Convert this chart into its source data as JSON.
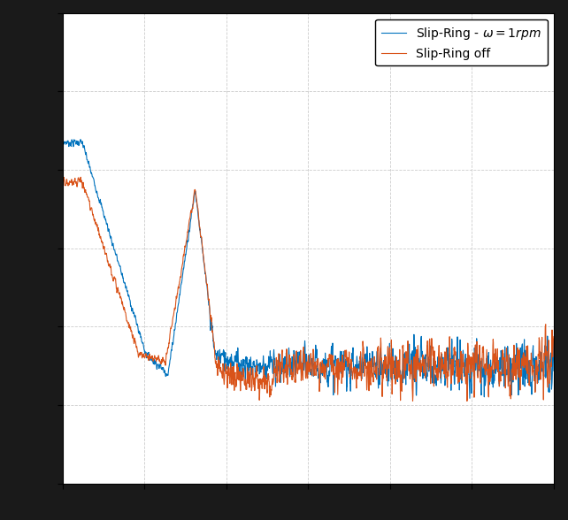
{
  "line1_color": "#0072BD",
  "line2_color": "#D95319",
  "line1_label": "Slip-Ring - $\\omega = 1rpm$",
  "line2_label": "Slip-Ring off",
  "fig_width": 6.42,
  "fig_height": 5.88,
  "dpi": 100,
  "outer_bg": "#1a1a1a",
  "plot_bg": "#ffffff",
  "grid_color": "#cccccc",
  "grid_linestyle": "--",
  "ylim": [
    -0.15,
    1.05
  ],
  "xlim": [
    0,
    1000
  ]
}
